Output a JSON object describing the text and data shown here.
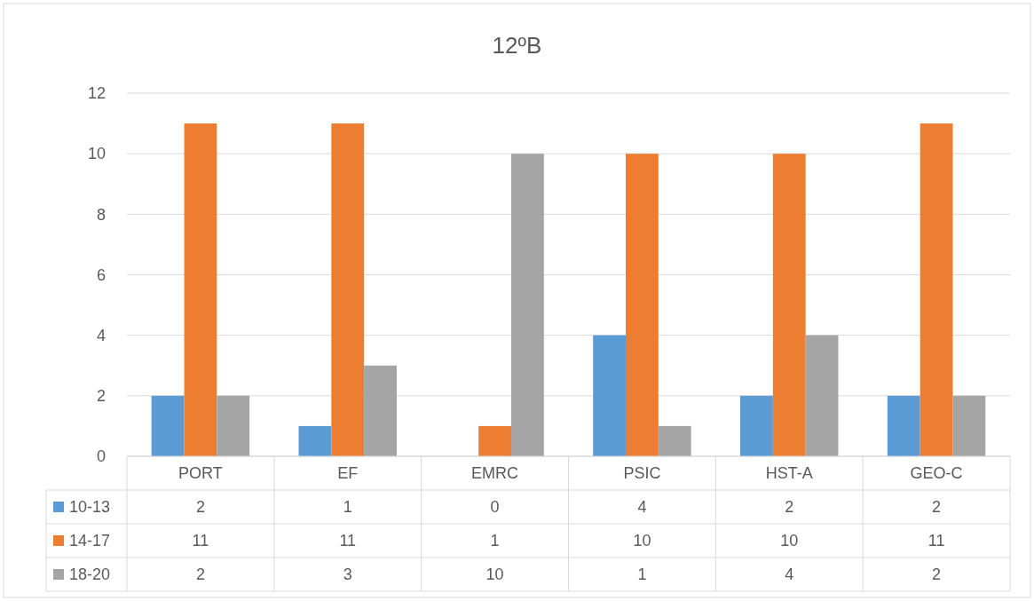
{
  "chart_data": {
    "type": "bar",
    "title": "12ºB",
    "categories": [
      "PORT",
      "EF",
      "EMRC",
      "PSIC",
      "HST-A",
      "GEO-C"
    ],
    "series": [
      {
        "name": "10-13",
        "color": "#5b9bd5",
        "values": [
          2,
          1,
          0,
          4,
          2,
          2
        ]
      },
      {
        "name": "14-17",
        "color": "#ed7d31",
        "values": [
          11,
          11,
          1,
          10,
          10,
          11
        ]
      },
      {
        "name": "18-20",
        "color": "#a5a5a5",
        "values": [
          2,
          3,
          10,
          1,
          4,
          2
        ]
      }
    ],
    "ylim": [
      0,
      12
    ],
    "yticks": [
      0,
      2,
      4,
      6,
      8,
      10,
      12
    ],
    "grid": "y",
    "legend": "bottom",
    "data_labels": true
  }
}
